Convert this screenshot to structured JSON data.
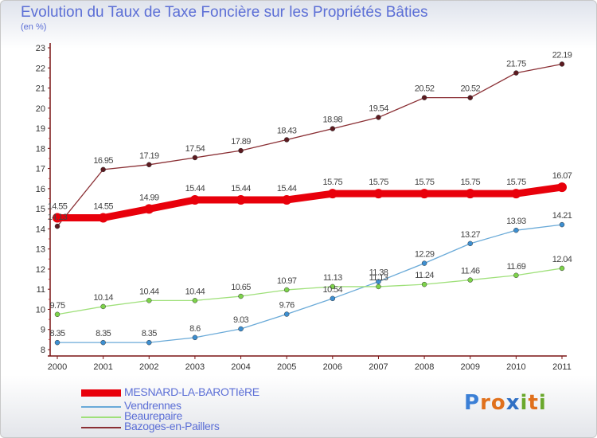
{
  "title": "Evolution du Taux de Taxe Foncière sur les Propriétés Bâties",
  "unit": "(en %)",
  "logo": {
    "text": "Proxiti",
    "letters": [
      {
        "ch": "P",
        "color": "#3b7fd6"
      },
      {
        "ch": "r",
        "color": "#e0701c"
      },
      {
        "ch": "o",
        "color": "#e0701c"
      },
      {
        "ch": "x",
        "color": "#2f6fc4"
      },
      {
        "ch": "i",
        "color": "#6aa82c"
      },
      {
        "ch": "t",
        "color": "#e0701c"
      },
      {
        "ch": "i",
        "color": "#6aa82c"
      }
    ]
  },
  "chart_data": {
    "type": "line",
    "categories": [
      "2000",
      "2001",
      "2002",
      "2003",
      "2004",
      "2005",
      "2006",
      "2007",
      "2008",
      "2009",
      "2010",
      "2011"
    ],
    "ylim": [
      8,
      23
    ],
    "yticks": [
      8,
      9,
      10,
      11,
      12,
      13,
      14,
      15,
      16,
      17,
      18,
      19,
      20,
      21,
      22,
      23
    ],
    "grid": false,
    "legend_position": "bottom-left",
    "series": [
      {
        "name": "MESNARD-LA-BAROTIèRE",
        "color": "#e8000b",
        "marker_color": "#e8000b",
        "labels_above": true,
        "values": [
          14.55,
          14.55,
          14.99,
          15.44,
          15.44,
          15.44,
          15.75,
          15.75,
          15.75,
          15.75,
          15.75,
          16.07
        ],
        "labels": [
          "14.55",
          "14.55",
          "14.99",
          "15.44",
          "15.44",
          "15.44",
          "15.75",
          "15.75",
          "15.75",
          "15.75",
          "15.75",
          "16.07"
        ]
      },
      {
        "name": "Vendrennes",
        "color": "#6aaad8",
        "marker_color": "#3d8fd1",
        "labels_above": true,
        "values": [
          8.35,
          8.35,
          8.35,
          8.6,
          9.03,
          9.76,
          10.54,
          11.38,
          12.29,
          13.27,
          13.93,
          14.21
        ],
        "labels": [
          "8.35",
          "8.35",
          "8.35",
          "8.6",
          "9.03",
          "9.76",
          "10.54",
          "11.38",
          "12.29",
          "13.27",
          "13.93",
          "14.21"
        ]
      },
      {
        "name": "Beaurepaire",
        "color": "#9fe07a",
        "marker_color": "#7dd34a",
        "labels_above": true,
        "values": [
          9.75,
          10.14,
          10.44,
          10.44,
          10.65,
          10.97,
          11.13,
          11.13,
          11.24,
          11.46,
          11.69,
          12.04
        ],
        "labels": [
          "9.75",
          "10.14",
          "10.44",
          "10.44",
          "10.65",
          "10.97",
          "11.13",
          "11.13",
          "11.24",
          "11.46",
          "11.69",
          "12.04"
        ]
      },
      {
        "name": "Bazoges-en-Paillers",
        "color": "#8a2f34",
        "marker_color": "#5c1a20",
        "labels_above": true,
        "values": [
          14.13,
          16.95,
          17.19,
          17.54,
          17.89,
          18.43,
          18.98,
          19.54,
          20.52,
          20.52,
          21.75,
          22.19
        ],
        "labels": [
          "14.13",
          "16.95",
          "17.19",
          "17.54",
          "17.89",
          "18.43",
          "18.98",
          "19.54",
          "20.52",
          "20.52",
          "21.75",
          "22.19"
        ]
      }
    ]
  }
}
